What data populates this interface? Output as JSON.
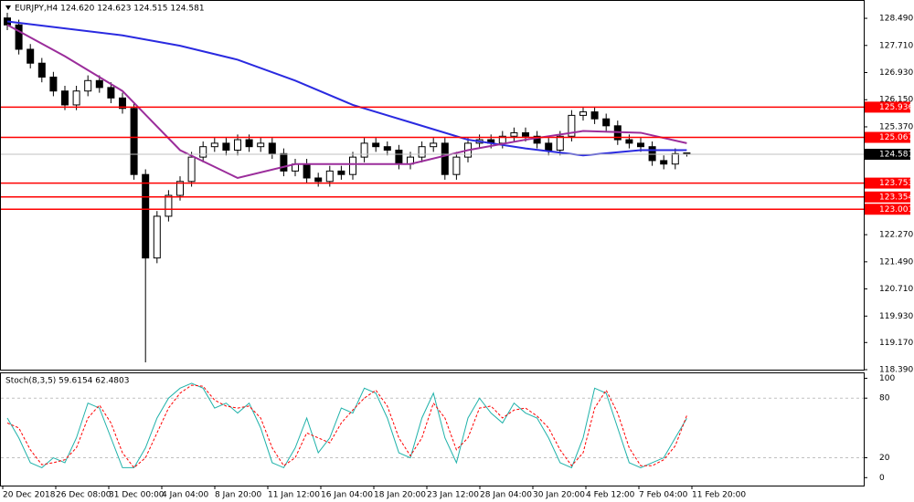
{
  "chart_data": [
    {
      "type": "candlestick",
      "title": "EURJPY,H4  124.620 124.623 124.515 124.581",
      "open": [
        128.5,
        128.3,
        127.6,
        127.2,
        126.8,
        126.4,
        126.0,
        126.4,
        126.7,
        126.5,
        126.2,
        125.9,
        124.0,
        121.6,
        122.8,
        123.4,
        123.8,
        124.5,
        124.8,
        124.9,
        124.7,
        125.0,
        124.8,
        124.9,
        124.6,
        124.1,
        124.3,
        123.9,
        123.8,
        124.1,
        124.0,
        124.5,
        124.9,
        124.8,
        124.7,
        124.3,
        124.5,
        124.8,
        124.9,
        124.0,
        124.5,
        124.9,
        125.0,
        124.9,
        125.1,
        125.2,
        125.1,
        124.9,
        124.7,
        125.1,
        125.7,
        125.8,
        125.6,
        125.4,
        125.0,
        124.9,
        124.8,
        124.4,
        124.3,
        124.62
      ],
      "high": [
        128.65,
        128.45,
        127.75,
        127.35,
        126.95,
        126.55,
        126.55,
        126.85,
        126.85,
        126.65,
        126.35,
        126.05,
        124.15,
        122.95,
        123.55,
        123.95,
        124.65,
        124.95,
        125.05,
        125.05,
        125.15,
        125.15,
        125.05,
        125.05,
        124.75,
        124.45,
        124.45,
        124.05,
        124.25,
        124.25,
        124.65,
        125.05,
        125.05,
        124.95,
        124.85,
        124.65,
        124.95,
        125.05,
        125.05,
        124.65,
        125.05,
        125.15,
        125.15,
        125.25,
        125.35,
        125.35,
        125.25,
        125.05,
        125.25,
        125.85,
        125.95,
        125.95,
        125.75,
        125.55,
        125.15,
        125.05,
        124.95,
        124.55,
        124.75,
        124.623
      ],
      "low": [
        128.15,
        127.45,
        127.05,
        126.65,
        126.25,
        125.85,
        125.85,
        126.25,
        126.35,
        126.05,
        125.75,
        123.85,
        118.6,
        121.45,
        122.65,
        123.25,
        123.65,
        124.35,
        124.65,
        124.55,
        124.55,
        124.65,
        124.65,
        124.45,
        123.95,
        123.95,
        123.75,
        123.65,
        123.65,
        123.85,
        123.85,
        124.35,
        124.65,
        124.55,
        124.15,
        124.15,
        124.35,
        124.65,
        123.85,
        123.85,
        124.35,
        124.75,
        124.75,
        124.75,
        124.95,
        124.95,
        124.75,
        124.55,
        124.55,
        124.95,
        125.55,
        125.45,
        125.25,
        124.85,
        124.75,
        124.65,
        124.25,
        124.15,
        124.15,
        124.515
      ],
      "close": [
        128.3,
        127.6,
        127.2,
        126.8,
        126.4,
        126.0,
        126.4,
        126.7,
        126.5,
        126.2,
        125.9,
        124.0,
        121.6,
        122.8,
        123.4,
        123.8,
        124.5,
        124.8,
        124.9,
        124.7,
        125.0,
        124.8,
        124.9,
        124.6,
        124.1,
        124.3,
        123.9,
        123.8,
        124.1,
        124.0,
        124.5,
        124.9,
        124.8,
        124.7,
        124.3,
        124.5,
        124.8,
        124.9,
        124.0,
        124.5,
        124.9,
        125.0,
        124.9,
        125.1,
        125.2,
        125.1,
        124.9,
        124.7,
        125.1,
        125.7,
        125.8,
        125.6,
        125.4,
        125.0,
        124.9,
        124.8,
        124.4,
        124.3,
        124.6,
        124.581
      ],
      "ma_index": [
        0,
        5,
        10,
        15,
        20,
        25,
        30,
        35,
        40,
        45,
        50,
        55,
        59
      ],
      "series": [
        {
          "color": "#2a2ae0",
          "values": [
            128.4,
            128.2,
            128.0,
            127.7,
            127.3,
            126.7,
            126.0,
            125.5,
            125.0,
            124.75,
            124.55,
            124.7,
            124.7
          ]
        },
        {
          "color": "#9b2d9b",
          "values": [
            128.3,
            127.4,
            126.4,
            124.7,
            123.9,
            124.3,
            124.3,
            124.3,
            124.7,
            125.0,
            125.25,
            125.2,
            124.9
          ]
        }
      ],
      "levels": [
        125.936,
        125.067,
        123.753,
        123.354,
        123.001
      ],
      "level_color": "#ff0000",
      "current_price": 124.581,
      "ylim": [
        118.39,
        128.99
      ],
      "yticks": [
        {
          "value": 128.49,
          "label": "128.490"
        },
        {
          "value": 127.71,
          "label": "127.710"
        },
        {
          "value": 126.93,
          "label": "126.930"
        },
        {
          "value": 126.15,
          "label": "126.150"
        },
        {
          "value": 125.37,
          "label": "125.370"
        },
        {
          "value": 122.27,
          "label": "122.270"
        },
        {
          "value": 121.49,
          "label": "121.490"
        },
        {
          "value": 120.71,
          "label": "120.710"
        },
        {
          "value": 119.93,
          "label": "119.930"
        },
        {
          "value": 119.17,
          "label": "119.170"
        },
        {
          "value": 118.39,
          "label": "118.390"
        }
      ],
      "xlabels": [
        "20 Dec 2018",
        "26 Dec 08:00",
        "31 Dec 00:00",
        "4 Jan 04:00",
        "8 Jan 20:00",
        "11 Jan 12:00",
        "16 Jan 04:00",
        "18 Jan 20:00",
        "23 Jan 12:00",
        "28 Jan 04:00",
        "30 Jan 20:00",
        "4 Feb 12:00",
        "7 Feb 04:00",
        "11 Feb 20:00"
      ]
    },
    {
      "type": "line",
      "title": "Stoch(8,3,5) 59.6154 62.4803",
      "series": [
        {
          "color": "#20b2aa",
          "dash": false,
          "values": [
            60,
            40,
            15,
            10,
            20,
            15,
            40,
            75,
            70,
            40,
            10,
            10,
            30,
            60,
            80,
            90,
            95,
            90,
            70,
            75,
            65,
            75,
            50,
            15,
            10,
            30,
            60,
            25,
            40,
            70,
            65,
            90,
            85,
            60,
            25,
            20,
            60,
            85,
            40,
            15,
            60,
            80,
            65,
            55,
            75,
            65,
            60,
            40,
            15,
            10,
            40,
            90,
            85,
            50,
            15,
            10,
            15,
            20,
            40,
            59.6154
          ]
        },
        {
          "color": "#ff0000",
          "dash": true,
          "values": [
            55,
            50,
            28,
            13,
            15,
            18,
            30,
            60,
            73,
            55,
            25,
            10,
            20,
            45,
            70,
            85,
            93,
            92,
            78,
            72,
            70,
            72,
            60,
            30,
            12,
            20,
            45,
            40,
            35,
            55,
            68,
            80,
            88,
            72,
            40,
            22,
            40,
            75,
            60,
            28,
            40,
            70,
            72,
            60,
            68,
            70,
            62,
            50,
            28,
            12,
            25,
            70,
            88,
            65,
            30,
            12,
            12,
            18,
            32,
            62.4803
          ]
        }
      ],
      "levels": [
        80,
        20
      ],
      "ylim": [
        -8,
        105
      ],
      "yticks": [
        100,
        80,
        20,
        0
      ]
    }
  ]
}
